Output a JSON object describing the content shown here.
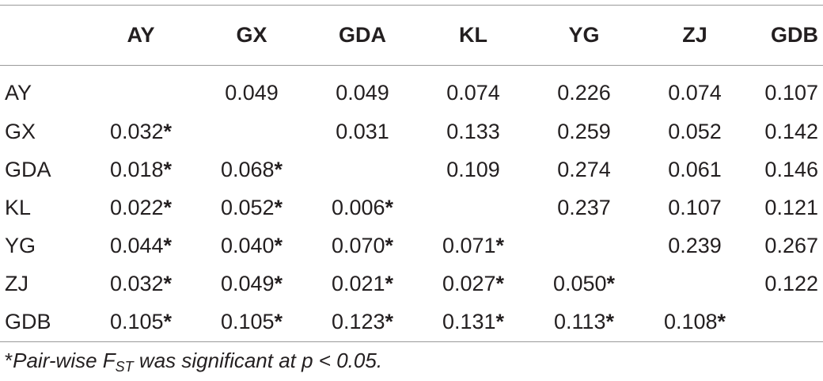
{
  "table": {
    "columns": [
      "",
      "AY",
      "GX",
      "GDA",
      "KL",
      "YG",
      "ZJ",
      "GDB"
    ],
    "rows": [
      {
        "label": "AY",
        "cells": [
          {
            "v": "",
            "s": ""
          },
          {
            "v": "0.049",
            "s": ""
          },
          {
            "v": "0.049",
            "s": ""
          },
          {
            "v": "0.074",
            "s": ""
          },
          {
            "v": "0.226",
            "s": ""
          },
          {
            "v": "0.074",
            "s": ""
          },
          {
            "v": "0.107",
            "s": ""
          }
        ]
      },
      {
        "label": "GX",
        "cells": [
          {
            "v": "0.032",
            "s": "*"
          },
          {
            "v": "",
            "s": ""
          },
          {
            "v": "0.031",
            "s": ""
          },
          {
            "v": "0.133",
            "s": ""
          },
          {
            "v": "0.259",
            "s": ""
          },
          {
            "v": "0.052",
            "s": ""
          },
          {
            "v": "0.142",
            "s": ""
          }
        ]
      },
      {
        "label": "GDA",
        "cells": [
          {
            "v": "0.018",
            "s": "*"
          },
          {
            "v": "0.068",
            "s": "*"
          },
          {
            "v": "",
            "s": ""
          },
          {
            "v": "0.109",
            "s": ""
          },
          {
            "v": "0.274",
            "s": ""
          },
          {
            "v": "0.061",
            "s": ""
          },
          {
            "v": "0.146",
            "s": ""
          }
        ]
      },
      {
        "label": "KL",
        "cells": [
          {
            "v": "0.022",
            "s": "*"
          },
          {
            "v": "0.052",
            "s": "*"
          },
          {
            "v": "0.006",
            "s": "*"
          },
          {
            "v": "",
            "s": ""
          },
          {
            "v": "0.237",
            "s": ""
          },
          {
            "v": "0.107",
            "s": ""
          },
          {
            "v": "0.121",
            "s": ""
          }
        ]
      },
      {
        "label": "YG",
        "cells": [
          {
            "v": "0.044",
            "s": "*"
          },
          {
            "v": "0.040",
            "s": "*"
          },
          {
            "v": "0.070",
            "s": "*"
          },
          {
            "v": "0.071",
            "s": "*"
          },
          {
            "v": "",
            "s": ""
          },
          {
            "v": "0.239",
            "s": ""
          },
          {
            "v": "0.267",
            "s": ""
          }
        ]
      },
      {
        "label": "ZJ",
        "cells": [
          {
            "v": "0.032",
            "s": "*"
          },
          {
            "v": "0.049",
            "s": "*"
          },
          {
            "v": "0.021",
            "s": "*"
          },
          {
            "v": "0.027",
            "s": "*"
          },
          {
            "v": "0.050",
            "s": "*"
          },
          {
            "v": "",
            "s": ""
          },
          {
            "v": "0.122",
            "s": ""
          }
        ]
      },
      {
        "label": "GDB",
        "cells": [
          {
            "v": "0.105",
            "s": "*"
          },
          {
            "v": "0.105",
            "s": "*"
          },
          {
            "v": "0.123",
            "s": "*"
          },
          {
            "v": "0.131",
            "s": "*"
          },
          {
            "v": "0.113",
            "s": "*"
          },
          {
            "v": "0.108",
            "s": "*"
          },
          {
            "v": "",
            "s": ""
          }
        ]
      }
    ]
  },
  "footnote": {
    "star": "*",
    "before": "Pair-wise F",
    "sub": "ST",
    "after": " was significant at p < 0.05."
  }
}
